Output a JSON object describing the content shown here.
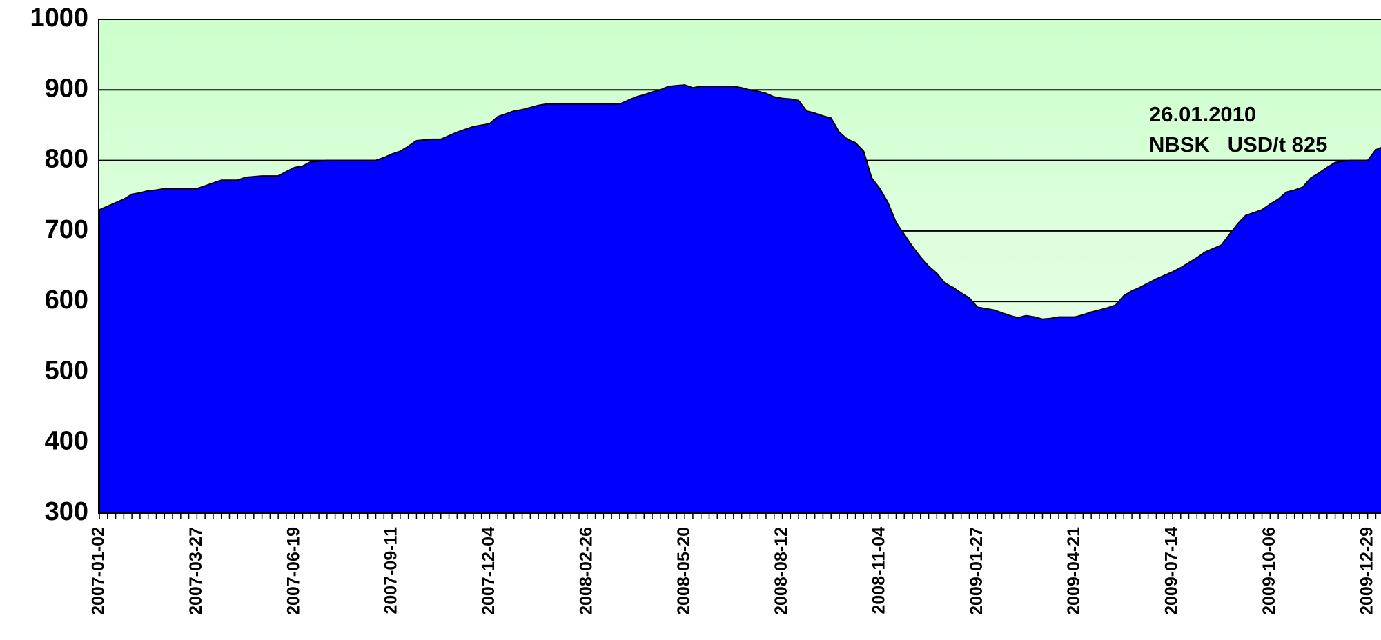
{
  "chart_data": {
    "type": "area",
    "categories": [
      "2007-01-02",
      null,
      null,
      null,
      null,
      null,
      null,
      null,
      null,
      null,
      null,
      null,
      "2007-03-27",
      null,
      null,
      null,
      null,
      null,
      null,
      null,
      null,
      null,
      null,
      null,
      "2007-06-19",
      null,
      null,
      null,
      null,
      null,
      null,
      null,
      null,
      null,
      null,
      null,
      "2007-09-11",
      null,
      null,
      null,
      null,
      null,
      null,
      null,
      null,
      null,
      null,
      null,
      "2007-12-04",
      null,
      null,
      null,
      null,
      null,
      null,
      null,
      null,
      null,
      null,
      null,
      "2008-02-26",
      null,
      null,
      null,
      null,
      null,
      null,
      null,
      null,
      null,
      null,
      null,
      "2008-05-20",
      null,
      null,
      null,
      null,
      null,
      null,
      null,
      null,
      null,
      null,
      null,
      "2008-08-12",
      null,
      null,
      null,
      null,
      null,
      null,
      null,
      null,
      null,
      null,
      null,
      "2008-11-04",
      null,
      null,
      null,
      null,
      null,
      null,
      null,
      null,
      null,
      null,
      null,
      "2009-01-27",
      null,
      null,
      null,
      null,
      null,
      null,
      null,
      null,
      null,
      null,
      null,
      "2009-04-21",
      null,
      null,
      null,
      null,
      null,
      null,
      null,
      null,
      null,
      null,
      null,
      "2009-07-14",
      null,
      null,
      null,
      null,
      null,
      null,
      null,
      null,
      null,
      null,
      null,
      "2009-10-06",
      null,
      null,
      null,
      null,
      null,
      null,
      null,
      null,
      null,
      null,
      null,
      "2009-12-29",
      null,
      null,
      null,
      null
    ],
    "values": [
      730,
      735,
      740,
      745,
      752,
      754,
      757,
      758,
      760,
      760,
      760,
      760,
      760,
      764,
      768,
      772,
      772,
      772,
      776,
      777,
      778,
      778,
      778,
      784,
      790,
      792,
      798,
      799,
      800,
      800,
      800,
      800,
      800,
      800,
      800,
      804,
      809,
      813,
      820,
      828,
      829,
      830,
      830,
      835,
      840,
      844,
      848,
      850,
      852,
      862,
      866,
      870,
      872,
      875,
      878,
      880,
      880,
      880,
      880,
      880,
      880,
      880,
      880,
      880,
      880,
      885,
      890,
      893,
      897,
      900,
      905,
      906,
      907,
      903,
      905,
      905,
      905,
      905,
      905,
      903,
      900,
      898,
      895,
      890,
      888,
      887,
      885,
      870,
      867,
      863,
      860,
      840,
      830,
      825,
      813,
      775,
      760,
      740,
      712,
      695,
      678,
      663,
      650,
      640,
      626,
      620,
      612,
      605,
      592,
      590,
      588,
      584,
      580,
      577,
      580,
      578,
      575,
      576,
      578,
      578,
      578,
      581,
      585,
      588,
      591,
      595,
      608,
      615,
      620,
      626,
      632,
      637,
      642,
      648,
      655,
      662,
      670,
      675,
      680,
      695,
      710,
      722,
      726,
      730,
      738,
      745,
      755,
      758,
      762,
      775,
      782,
      790,
      797,
      799,
      800,
      800,
      800,
      815,
      820,
      822,
      825
    ],
    "color": "#0000ff",
    "ylim": [
      300,
      1000
    ],
    "yticks": [
      300,
      400,
      500,
      600,
      700,
      800,
      900,
      1000
    ],
    "grid": true,
    "annotation": [
      "26.01.2010",
      "NBSK   USD/t 825"
    ]
  }
}
